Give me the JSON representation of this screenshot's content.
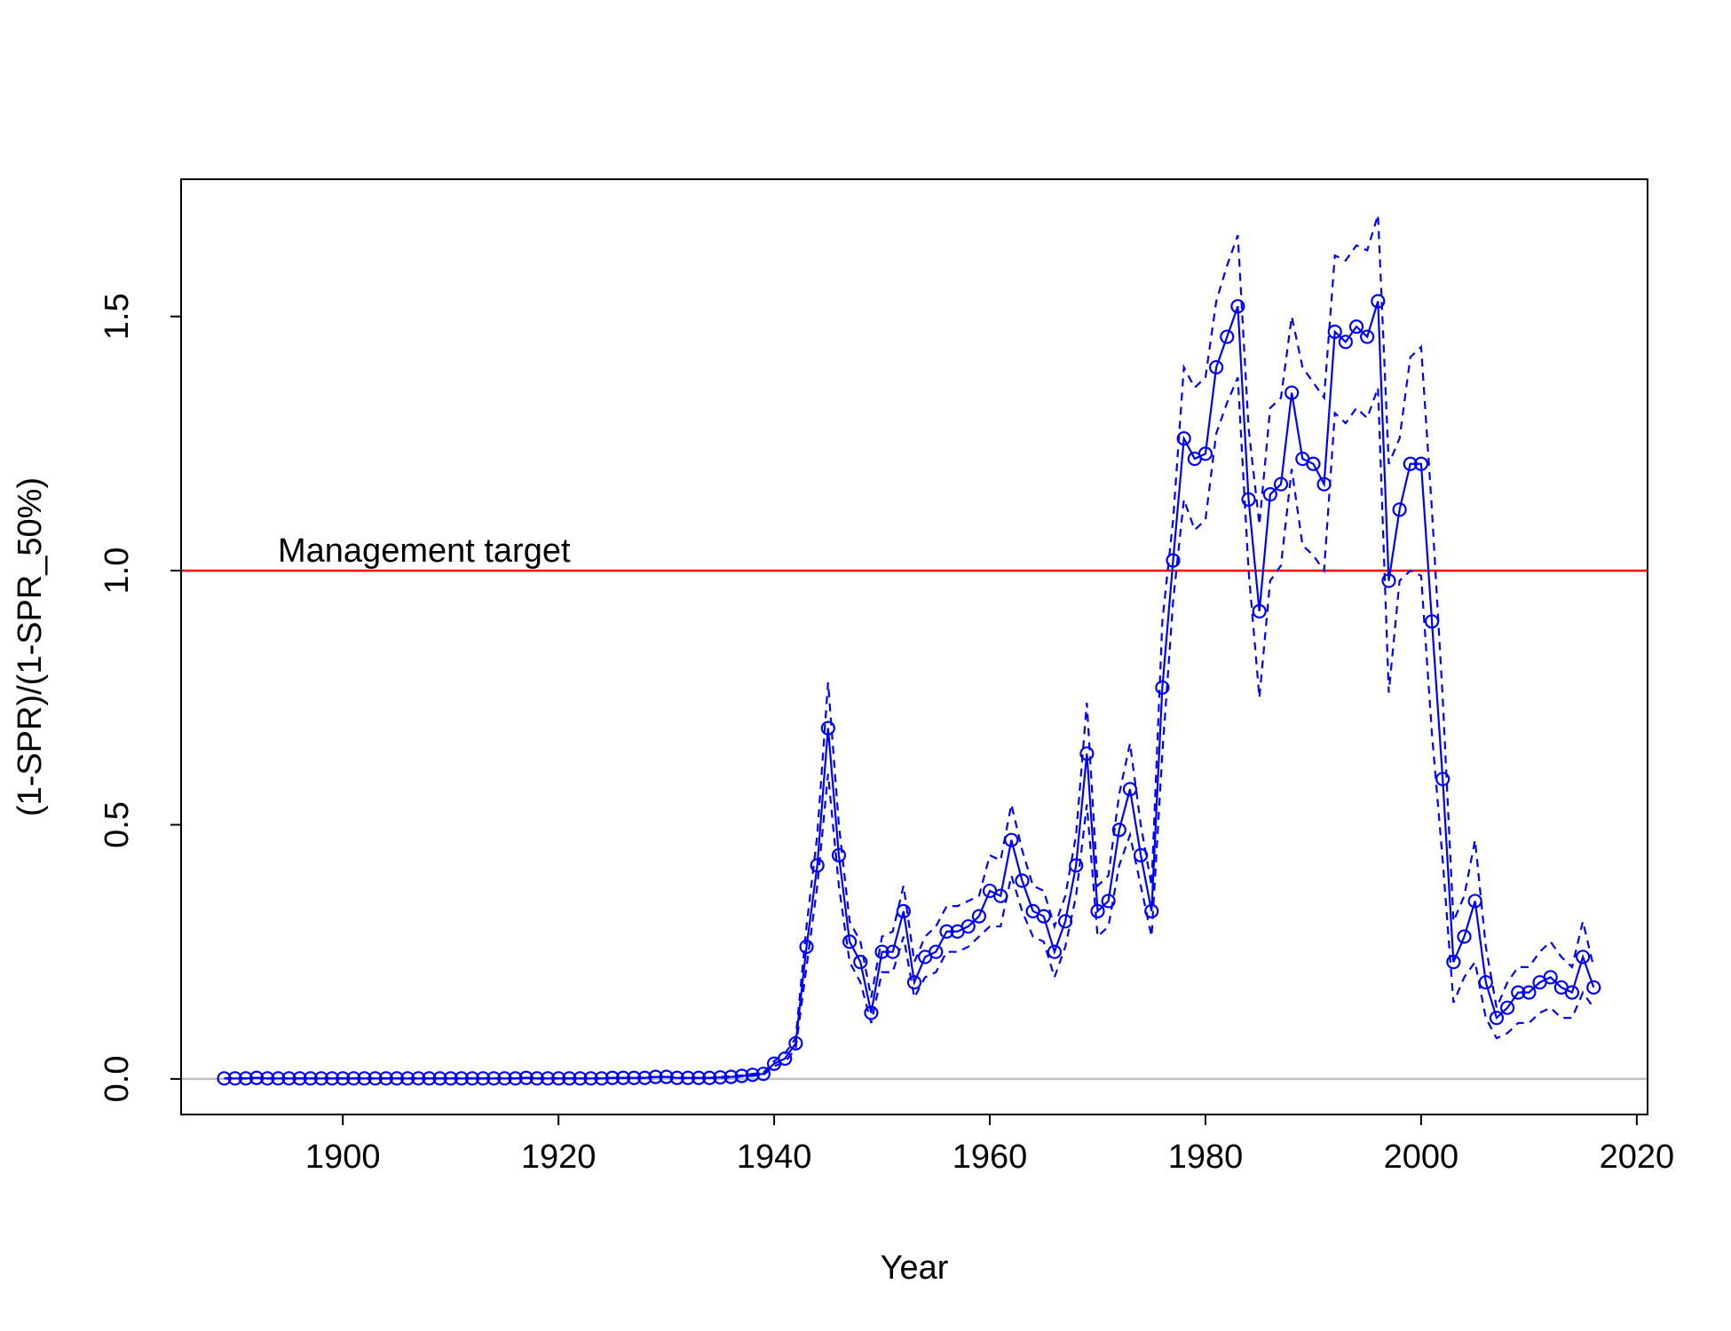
{
  "chart_data": {
    "type": "line",
    "title": "",
    "xlabel": "Year",
    "ylabel": "(1-SPR)/(1-SPR_50%)",
    "xlim": [
      1885,
      2021
    ],
    "ylim": [
      -0.07,
      1.77
    ],
    "x_ticks": [
      1900,
      1920,
      1940,
      1960,
      1980,
      2000,
      2020
    ],
    "x_tick_labels": [
      "1900",
      "1920",
      "1940",
      "1960",
      "1980",
      "2000",
      "2020"
    ],
    "y_ticks": [
      0,
      0.5,
      1,
      1.5
    ],
    "y_tick_labels": [
      "0.0",
      "0.5",
      "1.0",
      "1.5"
    ],
    "grid": false,
    "legend": "none",
    "reference_lines": [
      {
        "y": 1.0,
        "color": "#ff0000",
        "label": "Management target"
      },
      {
        "y": 0.0,
        "color": "#bebebe",
        "label": ""
      }
    ],
    "colors": {
      "series": "#0000ff",
      "target": "#ff0000",
      "zero": "#bebebe",
      "frame": "#000000"
    },
    "x": [
      1889,
      1890,
      1891,
      1892,
      1893,
      1894,
      1895,
      1896,
      1897,
      1898,
      1899,
      1900,
      1901,
      1902,
      1903,
      1904,
      1905,
      1906,
      1907,
      1908,
      1909,
      1910,
      1911,
      1912,
      1913,
      1914,
      1915,
      1916,
      1917,
      1918,
      1919,
      1920,
      1921,
      1922,
      1923,
      1924,
      1925,
      1926,
      1927,
      1928,
      1929,
      1930,
      1931,
      1932,
      1933,
      1934,
      1935,
      1936,
      1937,
      1938,
      1939,
      1940,
      1941,
      1942,
      1943,
      1944,
      1945,
      1946,
      1947,
      1948,
      1949,
      1950,
      1951,
      1952,
      1953,
      1954,
      1955,
      1956,
      1957,
      1958,
      1959,
      1960,
      1961,
      1962,
      1963,
      1964,
      1965,
      1966,
      1967,
      1968,
      1969,
      1970,
      1971,
      1972,
      1973,
      1974,
      1975,
      1976,
      1977,
      1978,
      1979,
      1980,
      1981,
      1982,
      1983,
      1984,
      1985,
      1986,
      1987,
      1988,
      1989,
      1990,
      1991,
      1992,
      1993,
      1994,
      1995,
      1996,
      1997,
      1998,
      1999,
      2000,
      2001,
      2002,
      2003,
      2004,
      2005,
      2006,
      2007,
      2008,
      2009,
      2010,
      2011,
      2012,
      2013,
      2014,
      2015,
      2016
    ],
    "series": [
      {
        "role": "estimate",
        "style": "solid with circles",
        "values": [
          0.001,
          0.001,
          0.001,
          0.002,
          0.001,
          0.001,
          0.001,
          0.001,
          0.001,
          0.001,
          0.001,
          0.001,
          0.001,
          0.001,
          0.001,
          0.001,
          0.001,
          0.001,
          0.001,
          0.001,
          0.001,
          0.001,
          0.001,
          0.001,
          0.001,
          0.001,
          0.001,
          0.001,
          0.002,
          0.001,
          0.001,
          0.001,
          0.001,
          0.001,
          0.001,
          0.001,
          0.002,
          0.002,
          0.002,
          0.002,
          0.004,
          0.004,
          0.002,
          0.002,
          0.002,
          0.002,
          0.003,
          0.004,
          0.006,
          0.008,
          0.01,
          0.03,
          0.04,
          0.07,
          0.26,
          0.42,
          0.69,
          0.44,
          0.27,
          0.23,
          0.13,
          0.25,
          0.25,
          0.33,
          0.19,
          0.24,
          0.25,
          0.29,
          0.29,
          0.3,
          0.32,
          0.37,
          0.36,
          0.47,
          0.39,
          0.33,
          0.32,
          0.25,
          0.31,
          0.42,
          0.64,
          0.33,
          0.35,
          0.49,
          0.57,
          0.44,
          0.33,
          0.77,
          1.02,
          1.26,
          1.22,
          1.23,
          1.4,
          1.46,
          1.52,
          1.14,
          0.92,
          1.15,
          1.17,
          1.35,
          1.22,
          1.21,
          1.17,
          1.47,
          1.45,
          1.48,
          1.46,
          1.53,
          0.98,
          1.12,
          1.21,
          1.21,
          0.9,
          0.59,
          0.23,
          0.28,
          0.35,
          0.19,
          0.12,
          0.14,
          0.17,
          0.17,
          0.19,
          0.2,
          0.18,
          0.17,
          0.24,
          0.18
        ]
      },
      {
        "role": "upper bound",
        "style": "dashed",
        "values": [
          0.001,
          0.001,
          0.001,
          0.002,
          0.001,
          0.001,
          0.001,
          0.001,
          0.001,
          0.001,
          0.001,
          0.001,
          0.001,
          0.001,
          0.001,
          0.001,
          0.001,
          0.001,
          0.001,
          0.001,
          0.001,
          0.001,
          0.001,
          0.001,
          0.001,
          0.001,
          0.001,
          0.001,
          0.002,
          0.001,
          0.001,
          0.001,
          0.001,
          0.001,
          0.001,
          0.001,
          0.002,
          0.002,
          0.002,
          0.002,
          0.004,
          0.004,
          0.002,
          0.002,
          0.002,
          0.002,
          0.004,
          0.005,
          0.007,
          0.01,
          0.012,
          0.035,
          0.05,
          0.08,
          0.3,
          0.48,
          0.78,
          0.5,
          0.31,
          0.27,
          0.16,
          0.28,
          0.29,
          0.38,
          0.23,
          0.28,
          0.3,
          0.34,
          0.34,
          0.35,
          0.36,
          0.44,
          0.43,
          0.54,
          0.45,
          0.38,
          0.37,
          0.3,
          0.36,
          0.48,
          0.74,
          0.38,
          0.4,
          0.56,
          0.66,
          0.5,
          0.38,
          0.9,
          1.1,
          1.4,
          1.36,
          1.38,
          1.53,
          1.6,
          1.66,
          1.28,
          1.09,
          1.32,
          1.34,
          1.5,
          1.4,
          1.37,
          1.34,
          1.62,
          1.61,
          1.64,
          1.63,
          1.7,
          1.21,
          1.26,
          1.42,
          1.44,
          1.12,
          0.75,
          0.31,
          0.36,
          0.47,
          0.26,
          0.14,
          0.19,
          0.22,
          0.22,
          0.25,
          0.27,
          0.24,
          0.22,
          0.31,
          0.22
        ]
      },
      {
        "role": "lower bound",
        "style": "dashed",
        "values": [
          0.001,
          0.001,
          0.001,
          0.002,
          0.001,
          0.001,
          0.001,
          0.001,
          0.001,
          0.001,
          0.001,
          0.001,
          0.001,
          0.001,
          0.001,
          0.001,
          0.001,
          0.001,
          0.001,
          0.001,
          0.001,
          0.001,
          0.001,
          0.001,
          0.001,
          0.001,
          0.001,
          0.001,
          0.002,
          0.001,
          0.001,
          0.001,
          0.001,
          0.001,
          0.001,
          0.001,
          0.002,
          0.002,
          0.002,
          0.002,
          0.004,
          0.004,
          0.002,
          0.002,
          0.002,
          0.002,
          0.002,
          0.003,
          0.005,
          0.006,
          0.008,
          0.025,
          0.033,
          0.06,
          0.22,
          0.38,
          0.6,
          0.38,
          0.23,
          0.19,
          0.11,
          0.21,
          0.21,
          0.28,
          0.16,
          0.2,
          0.21,
          0.25,
          0.25,
          0.26,
          0.28,
          0.3,
          0.3,
          0.4,
          0.33,
          0.28,
          0.27,
          0.2,
          0.26,
          0.36,
          0.54,
          0.28,
          0.3,
          0.42,
          0.48,
          0.38,
          0.28,
          0.64,
          0.94,
          1.14,
          1.08,
          1.1,
          1.27,
          1.33,
          1.38,
          1.0,
          0.75,
          0.98,
          1.01,
          1.2,
          1.05,
          1.03,
          1.0,
          1.31,
          1.29,
          1.32,
          1.3,
          1.36,
          0.76,
          0.98,
          1.0,
          0.99,
          0.68,
          0.43,
          0.15,
          0.2,
          0.23,
          0.12,
          0.08,
          0.09,
          0.11,
          0.11,
          0.13,
          0.14,
          0.12,
          0.12,
          0.17,
          0.14
        ]
      }
    ]
  },
  "annotations": {
    "target_label": "Management target"
  }
}
